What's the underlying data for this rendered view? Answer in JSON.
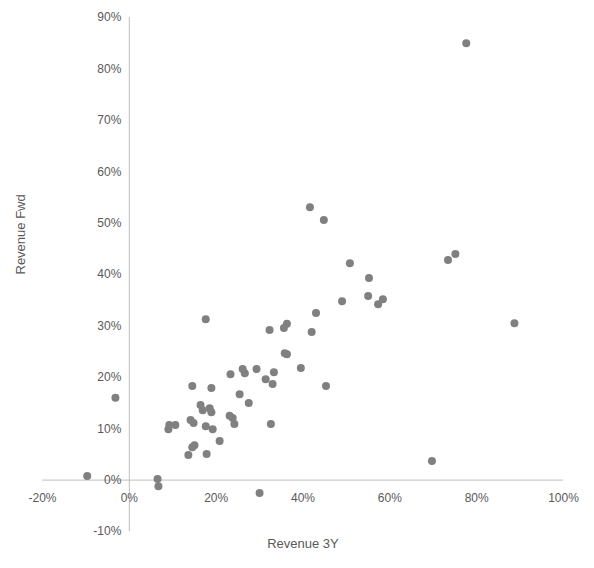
{
  "chart_data": {
    "type": "scatter",
    "x_label": "Revenue 3Y",
    "y_label": "Revenue Fwd",
    "color": "#808080",
    "marker": "circle",
    "grid": false,
    "xlim": [
      -20,
      100
    ],
    "ylim": [
      -10,
      90
    ],
    "xticks": [
      {
        "value": -20,
        "label": "-20%"
      },
      {
        "value": 0,
        "label": "0%"
      },
      {
        "value": 20,
        "label": "20%"
      },
      {
        "value": 40,
        "label": "40%"
      },
      {
        "value": 60,
        "label": "60%"
      },
      {
        "value": 80,
        "label": "80%"
      },
      {
        "value": 100,
        "label": "100%"
      }
    ],
    "yticks": [
      {
        "value": -10,
        "label": "-10%"
      },
      {
        "value": 0,
        "label": "0%"
      },
      {
        "value": 10,
        "label": "10%"
      },
      {
        "value": 20,
        "label": "20%"
      },
      {
        "value": 30,
        "label": "30%"
      },
      {
        "value": 40,
        "label": "40%"
      },
      {
        "value": 50,
        "label": "50%"
      },
      {
        "value": 60,
        "label": "60%"
      },
      {
        "value": 70,
        "label": "70%"
      },
      {
        "value": 80,
        "label": "80%"
      },
      {
        "value": 90,
        "label": "90%"
      }
    ],
    "x": [
      77.6,
      41.6,
      44.8,
      50.8,
      73.4,
      75.1,
      55.2,
      43.0,
      49.0,
      55.0,
      57.3,
      58.4,
      88.7,
      17.6,
      32.3,
      35.6,
      36.3,
      42.0,
      35.8,
      36.3,
      39.5,
      29.3,
      26.1,
      26.6,
      33.3,
      31.4,
      33.0,
      23.3,
      45.3,
      14.5,
      18.9,
      25.4,
      27.5,
      16.4,
      16.9,
      18.5,
      18.9,
      23.1,
      23.8,
      24.2,
      14.1,
      14.8,
      9.2,
      10.6,
      9.0,
      17.6,
      19.2,
      32.6,
      -3.2,
      20.8,
      15.0,
      14.5,
      13.6,
      17.8,
      69.7,
      -9.7,
      6.5,
      6.7,
      30.0
    ],
    "values": [
      85.0,
      53.1,
      50.6,
      42.2,
      42.8,
      44.0,
      39.3,
      32.5,
      34.8,
      35.8,
      34.2,
      35.2,
      30.5,
      31.3,
      29.2,
      29.6,
      30.4,
      28.8,
      24.7,
      24.5,
      21.8,
      21.6,
      21.6,
      20.8,
      21.0,
      19.6,
      18.7,
      20.6,
      18.3,
      18.3,
      17.9,
      16.7,
      15.0,
      14.6,
      13.6,
      14.0,
      13.2,
      12.5,
      12.1,
      10.9,
      11.7,
      11.1,
      10.7,
      10.7,
      9.9,
      10.5,
      9.9,
      10.9,
      16.0,
      7.6,
      6.8,
      6.4,
      4.9,
      5.1,
      3.7,
      0.8,
      0.2,
      -1.2,
      -2.5
    ]
  }
}
